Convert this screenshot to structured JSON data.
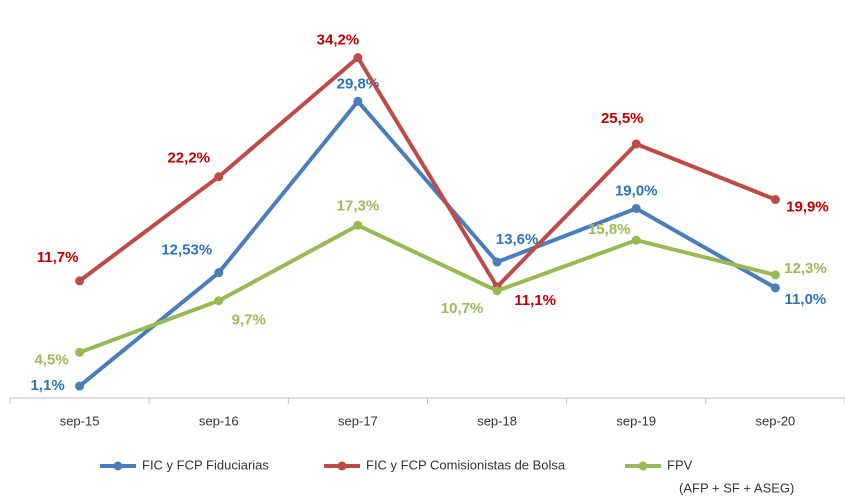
{
  "chart_data": {
    "type": "line",
    "categories": [
      "sep-15",
      "sep-16",
      "sep-17",
      "sep-18",
      "sep-19",
      "sep-20"
    ],
    "ylim": [
      0,
      39
    ],
    "series": [
      {
        "name": "FIC y FCP Fiduciarias",
        "color": "#4a7ebb",
        "label_color": "#2e75b6",
        "values": [
          1.1,
          12.53,
          29.8,
          13.6,
          19.0,
          11.0
        ],
        "value_labels": [
          "1,1%",
          "12,53%",
          "29,8%",
          "13,6%",
          "19,0%",
          "11,0%"
        ]
      },
      {
        "name": "FIC y FCP Comisionistas de Bolsa",
        "color": "#be4b48",
        "label_color": "#c00000",
        "values": [
          11.7,
          22.2,
          34.2,
          11.1,
          25.5,
          19.9
        ],
        "value_labels": [
          "11,7%",
          "22,2%",
          "34,2%",
          "11,1%",
          "25,5%",
          "19,9%"
        ]
      },
      {
        "name": "FPV",
        "note": "(AFP + SF + ASEG)",
        "color": "#98b954",
        "label_color": "#9bbb59",
        "values": [
          4.5,
          9.7,
          17.3,
          10.7,
          15.8,
          12.3
        ],
        "value_labels": [
          "4,5%",
          "9,7%",
          "17,3%",
          "10,7%",
          "15,8%",
          "12,3%"
        ]
      }
    ]
  }
}
